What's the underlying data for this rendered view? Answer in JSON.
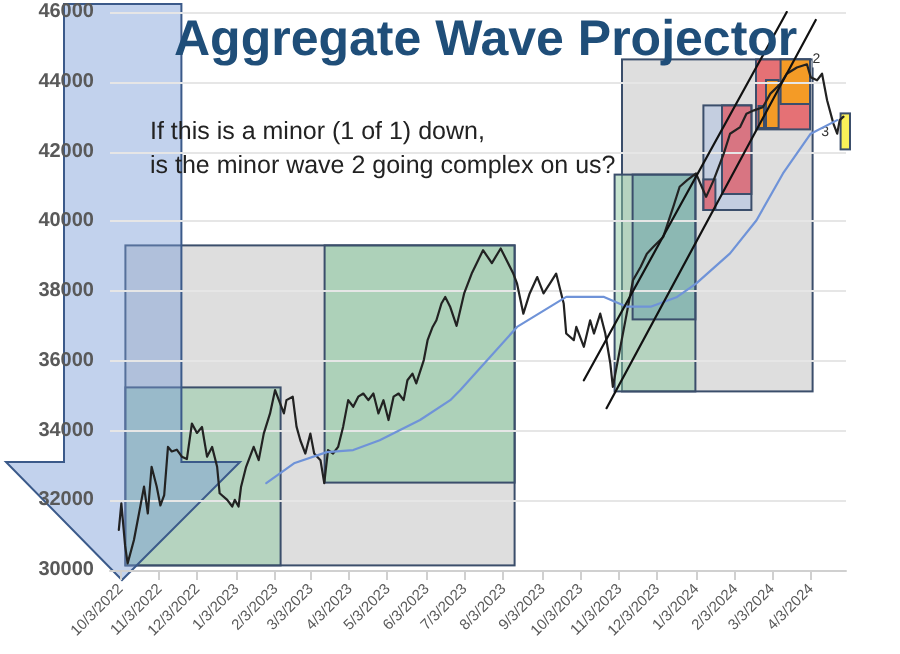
{
  "chart_data": {
    "type": "line",
    "title": "Aggregate Wave Projector",
    "subtitle": "If this is a minor (1 of 1) down,\nis the minor wave 2 going complex on us?",
    "xlim": [
      "2022-09-25",
      "2024-05-01"
    ],
    "xticks": [
      {
        "value": "2022-10-03",
        "label": "10/3/2022"
      },
      {
        "value": "2022-11-03",
        "label": "11/3/2022"
      },
      {
        "value": "2022-12-03",
        "label": "12/3/2022"
      },
      {
        "value": "2023-01-03",
        "label": "1/3/2023"
      },
      {
        "value": "2023-02-03",
        "label": "2/3/2023"
      },
      {
        "value": "2023-03-03",
        "label": "3/3/2023"
      },
      {
        "value": "2023-04-03",
        "label": "4/3/2023"
      },
      {
        "value": "2023-05-03",
        "label": "5/3/2023"
      },
      {
        "value": "2023-06-03",
        "label": "6/3/2023"
      },
      {
        "value": "2023-07-03",
        "label": "7/3/2023"
      },
      {
        "value": "2023-08-03",
        "label": "8/3/2023"
      },
      {
        "value": "2023-09-03",
        "label": "9/3/2023"
      },
      {
        "value": "2023-10-03",
        "label": "10/3/2023"
      },
      {
        "value": "2023-11-03",
        "label": "11/3/2023"
      },
      {
        "value": "2023-12-03",
        "label": "12/3/2023"
      },
      {
        "value": "2024-01-03",
        "label": "1/3/2024"
      },
      {
        "value": "2024-02-03",
        "label": "2/3/2024"
      },
      {
        "value": "2024-03-03",
        "label": "3/3/2024"
      },
      {
        "value": "2024-04-03",
        "label": "4/3/2024"
      }
    ],
    "ylim": [
      30000,
      46000
    ],
    "yticks": [
      30000,
      32000,
      34000,
      36000,
      38000,
      40000,
      42000,
      44000,
      46000
    ],
    "grid": "y",
    "marker": "none",
    "series": [
      {
        "color": "#222222",
        "x": [
          "2022-10-02",
          "2022-10-04",
          "2022-10-07",
          "2022-10-09",
          "2022-10-14",
          "2022-10-18",
          "2022-10-22",
          "2022-10-25",
          "2022-10-28",
          "2022-11-01",
          "2022-11-04",
          "2022-11-07",
          "2022-11-10",
          "2022-11-13",
          "2022-11-17",
          "2022-11-21",
          "2022-11-25",
          "2022-11-29",
          "2022-12-03",
          "2022-12-07",
          "2022-12-11",
          "2022-12-15",
          "2022-12-19",
          "2022-12-21",
          "2022-12-27",
          "2022-12-31",
          "2023-01-02",
          "2023-01-05",
          "2023-01-07",
          "2023-01-11",
          "2023-01-17",
          "2023-01-21",
          "2023-01-25",
          "2023-01-30",
          "2023-02-03",
          "2023-02-06",
          "2023-02-10",
          "2023-02-12",
          "2023-02-17",
          "2023-02-20",
          "2023-02-23",
          "2023-02-27",
          "2023-03-03",
          "2023-03-06",
          "2023-03-11",
          "2023-03-14",
          "2023-03-17",
          "2023-03-21",
          "2023-03-25",
          "2023-03-29",
          "2023-04-02",
          "2023-04-06",
          "2023-04-10",
          "2023-04-14",
          "2023-04-18",
          "2023-04-22",
          "2023-04-26",
          "2023-04-30",
          "2023-05-04",
          "2023-05-08",
          "2023-05-12",
          "2023-05-16",
          "2023-05-19",
          "2023-05-23",
          "2023-05-26",
          "2023-06-01",
          "2023-06-04",
          "2023-06-08",
          "2023-06-11",
          "2023-06-15",
          "2023-06-18",
          "2023-06-22",
          "2023-06-27",
          "2023-07-03",
          "2023-07-09",
          "2023-07-18",
          "2023-07-25",
          "2023-08-01",
          "2023-08-11",
          "2023-08-14",
          "2023-08-19",
          "2023-08-24",
          "2023-08-30",
          "2023-09-04",
          "2023-09-09",
          "2023-09-14",
          "2023-09-20",
          "2023-09-22",
          "2023-09-28",
          "2023-09-30",
          "2023-10-06",
          "2023-10-11",
          "2023-10-14",
          "2023-10-19",
          "2023-10-23",
          "2023-10-27",
          "2023-10-29",
          "2023-11-04",
          "2023-11-09",
          "2023-11-14",
          "2023-11-20",
          "2023-11-25",
          "2023-11-30",
          "2023-12-08",
          "2023-12-16",
          "2023-12-21",
          "2023-12-27",
          "2024-01-03",
          "2024-01-11",
          "2024-01-17",
          "2024-01-25",
          "2024-01-30",
          "2024-02-07",
          "2024-02-12",
          "2024-02-18",
          "2024-02-25",
          "2024-03-02",
          "2024-03-10",
          "2024-03-15",
          "2024-03-23",
          "2024-03-31",
          "2024-04-03",
          "2024-04-08",
          "2024-04-12",
          "2024-04-16",
          "2024-04-21",
          "2024-04-24",
          "2024-04-26",
          "2024-04-29"
        ],
        "values": [
          31150,
          31910,
          30690,
          30190,
          30860,
          31620,
          32390,
          31620,
          32960,
          32400,
          31850,
          32150,
          33530,
          33400,
          33450,
          33250,
          33180,
          34200,
          33930,
          34100,
          33250,
          33530,
          32960,
          32200,
          32010,
          31820,
          32010,
          31820,
          32390,
          32960,
          33530,
          33150,
          33910,
          34490,
          35160,
          34870,
          34490,
          34870,
          34970,
          34110,
          33720,
          33340,
          33910,
          33340,
          33150,
          32490,
          33440,
          33340,
          33530,
          34110,
          34870,
          34680,
          34970,
          35060,
          34870,
          35060,
          34490,
          34870,
          34300,
          34970,
          35060,
          34870,
          35440,
          35630,
          35350,
          36020,
          36590,
          36970,
          37160,
          37640,
          37830,
          37540,
          37000,
          37930,
          38500,
          39170,
          38800,
          39220,
          38500,
          38210,
          37350,
          37930,
          38400,
          37930,
          38210,
          38500,
          37640,
          36780,
          36590,
          36970,
          36400,
          37160,
          36780,
          37350,
          36780,
          35920,
          35250,
          36400,
          37350,
          38310,
          38690,
          39070,
          39260,
          39550,
          40420,
          40990,
          41180,
          41370,
          40700,
          41180,
          41940,
          42510,
          42700,
          43080,
          43180,
          43270,
          43660,
          43940,
          44230,
          44410,
          44500,
          44130,
          44040,
          44230,
          43470,
          42800,
          42510,
          42900,
          43000
        ]
      },
      {
        "color": "#6f93d8",
        "x": [
          "2023-01-27",
          "2023-02-18",
          "2023-03-16",
          "2023-04-06",
          "2023-04-27",
          "2023-05-29",
          "2023-06-22",
          "2023-06-30",
          "2023-08-14",
          "2023-09-22",
          "2023-10-22",
          "2023-11-09",
          "2023-11-28",
          "2023-12-19",
          "2024-01-03",
          "2024-01-30",
          "2024-02-20",
          "2024-03-12",
          "2024-04-03",
          "2024-04-24"
        ],
        "values": [
          32490,
          33060,
          33380,
          33440,
          33720,
          34300,
          34870,
          35160,
          36970,
          37830,
          37830,
          37550,
          37550,
          37830,
          38210,
          39080,
          40030,
          41370,
          42510,
          42900
        ]
      },
      {
        "type": "line",
        "color": "#111111",
        "x": [
          "2023-10-06",
          "2024-03-15"
        ],
        "values": [
          35440,
          46000
        ]
      },
      {
        "type": "line",
        "color": "#111111",
        "x": [
          "2023-10-24",
          "2024-04-07"
        ],
        "values": [
          34640,
          45770
        ]
      }
    ],
    "annotations": [
      {
        "text": "2",
        "x": "2024-04-17",
        "y": 44410
      },
      {
        "text": "3",
        "x": "2024-04-24",
        "y": 42330
      }
    ]
  }
}
